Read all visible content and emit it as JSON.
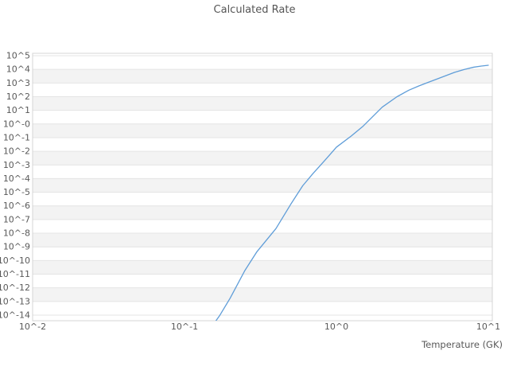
{
  "chart_data": {
    "type": "line",
    "title": "Calculated Rate",
    "xlabel": "Temperature (GK)",
    "ylabel": "",
    "x_scale": "log",
    "y_scale": "log",
    "xlim": [
      0.01,
      10.6
    ],
    "ylim": [
      3.9e-15,
      150000.0
    ],
    "grid": "horizontal-only",
    "legend": "none",
    "x_ticks": [
      "10^-2",
      "10^-1",
      "10^0",
      "10^1"
    ],
    "x_tick_logs": [
      -2,
      -1,
      0,
      1
    ],
    "y_ticks": [
      "10^5",
      "10^4",
      "10^3",
      "10^2",
      "10^1",
      "10^-0",
      "10^-1",
      "10^-2",
      "10^-3",
      "10^-4",
      "10^-5",
      "10^-6",
      "10^-7",
      "10^-8",
      "10^-9",
      "10^-10",
      "10^-11",
      "10^-12",
      "10^-13",
      "10^-14"
    ],
    "y_tick_logs": [
      5,
      4,
      3,
      2,
      1,
      0,
      -1,
      -2,
      -3,
      -4,
      -5,
      -6,
      -7,
      -8,
      -9,
      -10,
      -11,
      -12,
      -13,
      -14
    ],
    "colors": {
      "line": "#5f9dd8",
      "band_gray": "#f3f3f3",
      "gridline": "#e4e4e4",
      "plot_border": "#d4d4d4",
      "title_text": "#555555",
      "tick_text": "#595959"
    },
    "series": [
      {
        "name": "Calculated Rate",
        "x": [
          0.16,
          0.17,
          0.2,
          0.25,
          0.3,
          0.4,
          0.5,
          0.6,
          0.7,
          0.8,
          0.9,
          1.0,
          1.25,
          1.5,
          2.0,
          2.5,
          3.0,
          3.5,
          4.0,
          5.0,
          6.0,
          7.0,
          8.0,
          9.0,
          10.0
        ],
        "y": [
          3.5e-15,
          9e-15,
          1.8e-13,
          1.9e-11,
          4.5e-10,
          2.2e-08,
          1.3e-06,
          3e-05,
          0.00023,
          0.0012,
          0.0052,
          0.02,
          0.13,
          0.7,
          17,
          98,
          300,
          620,
          1100,
          2800,
          6100,
          10000,
          14400,
          17400,
          20000
        ]
      }
    ]
  }
}
